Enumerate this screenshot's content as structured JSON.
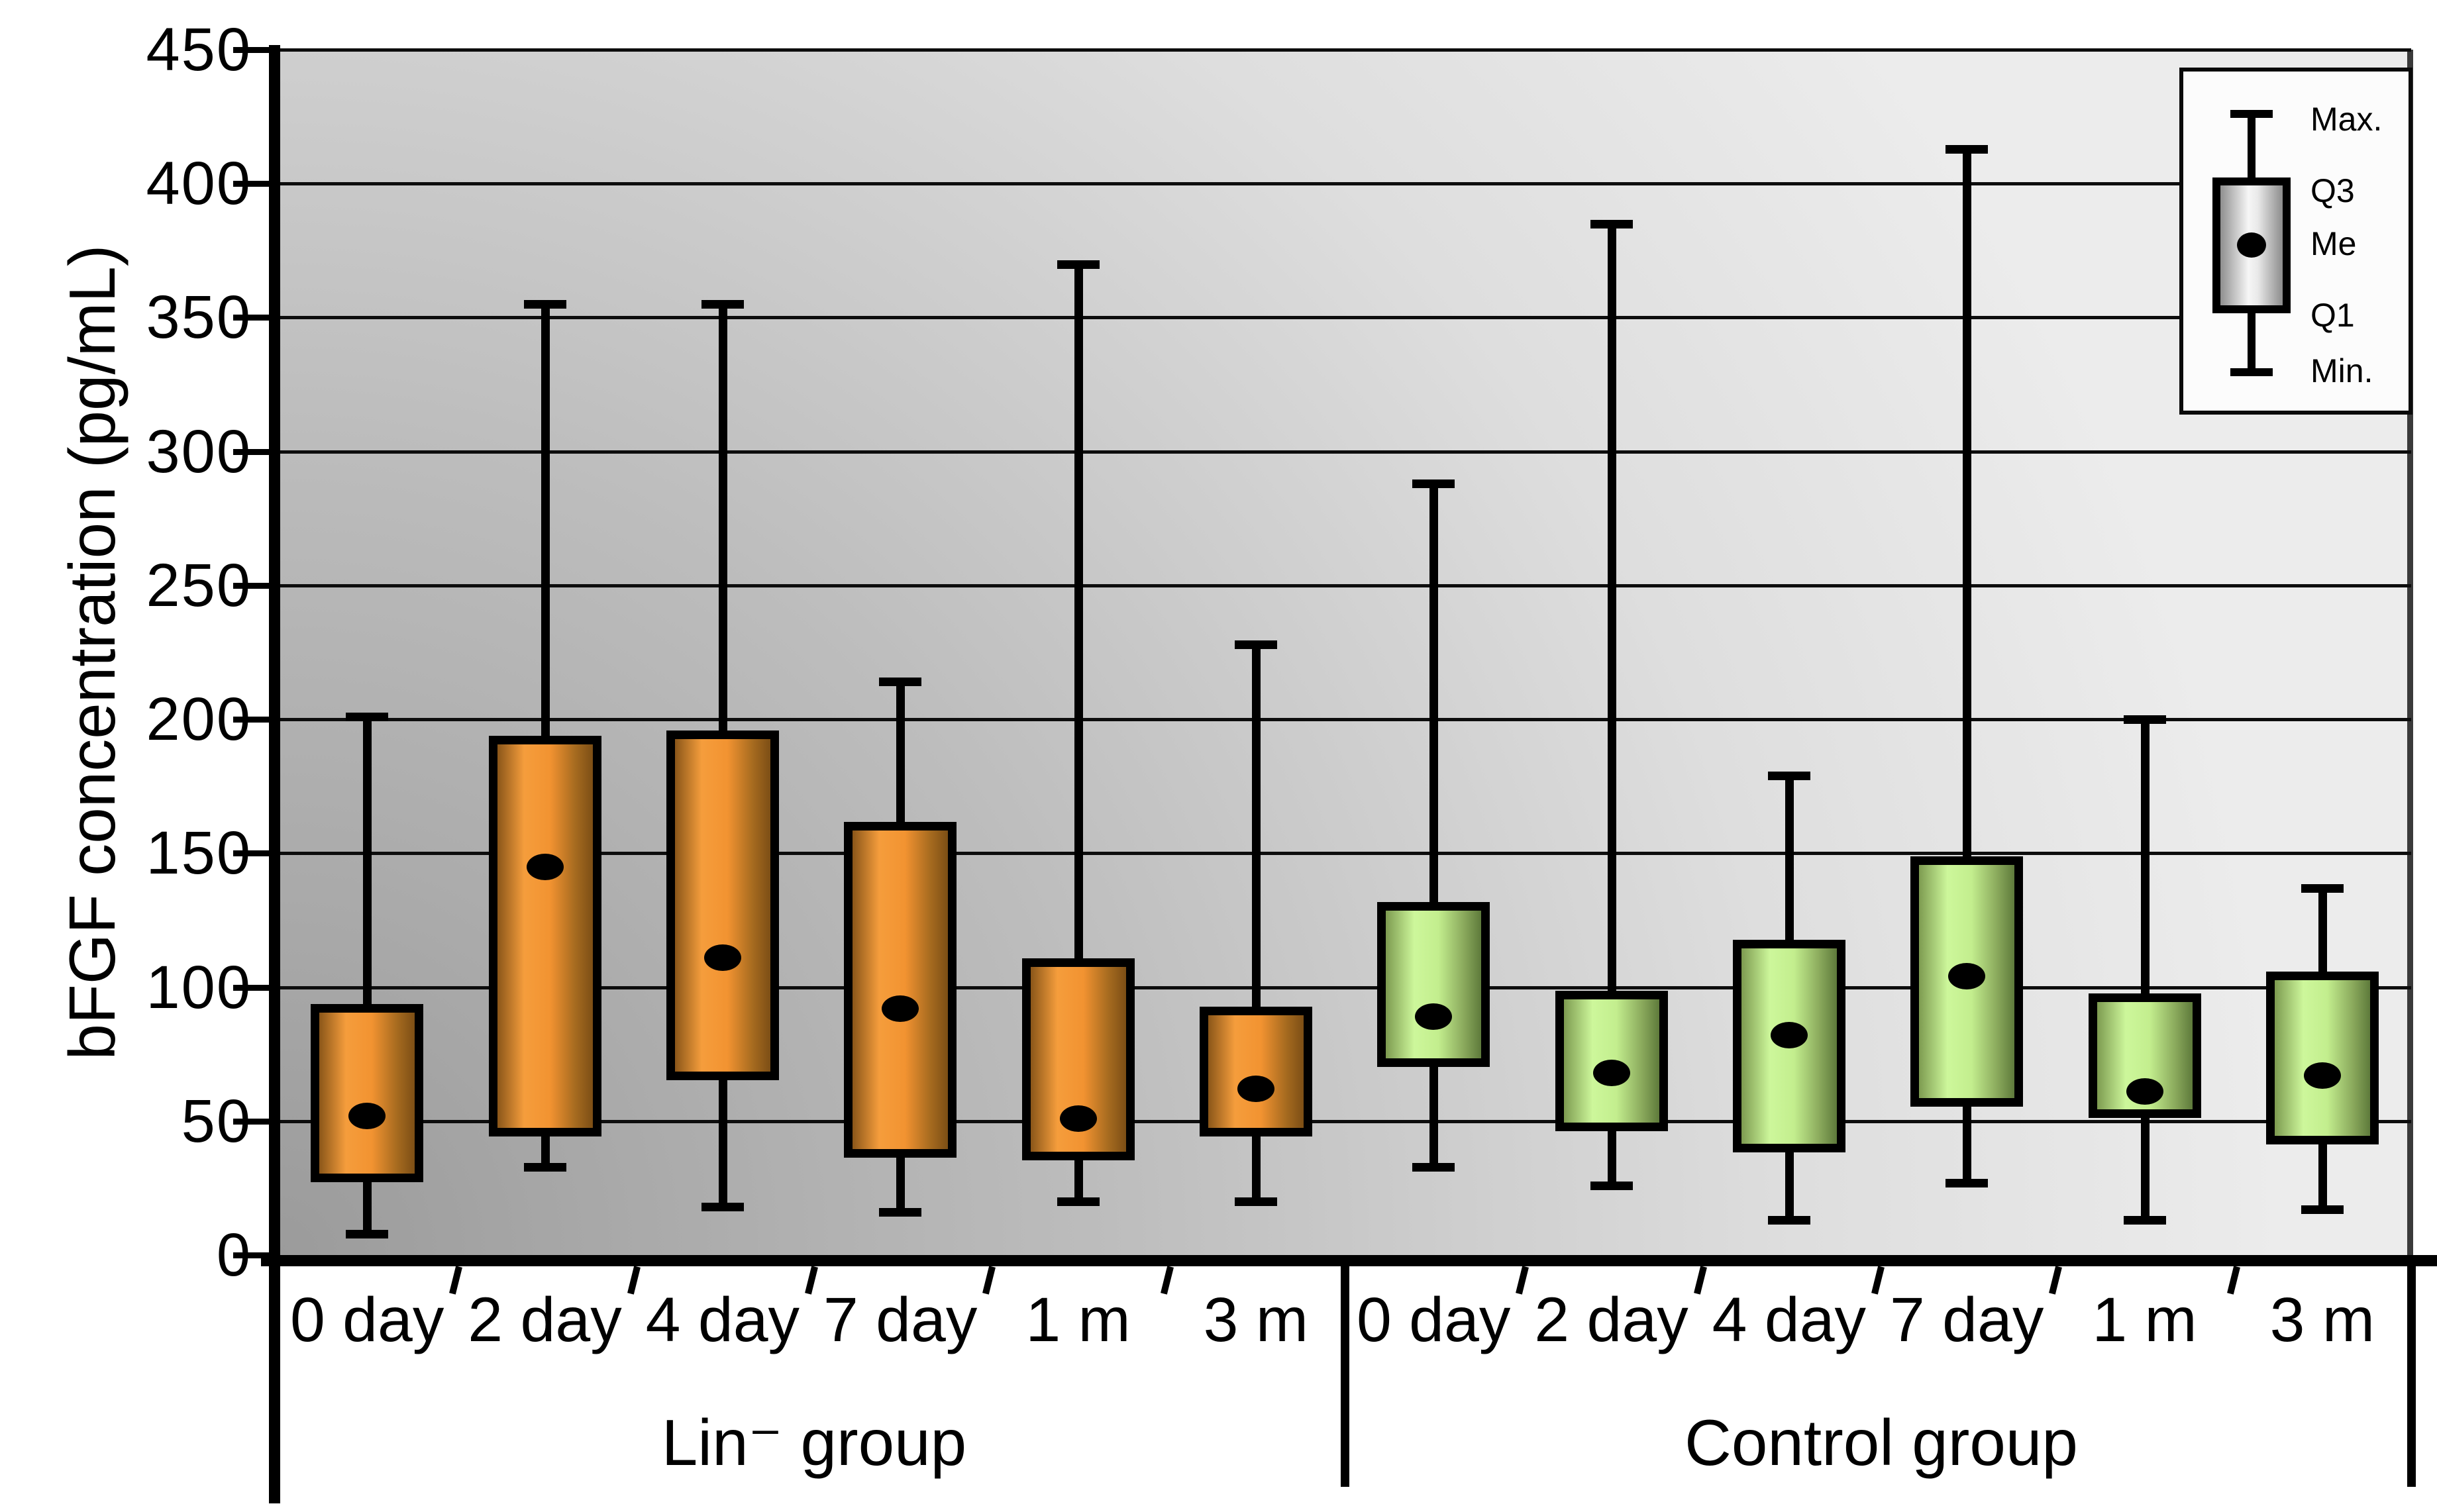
{
  "y_axis": {
    "label": "bFGF concentration (pg/mL)",
    "ticks": [
      450,
      400,
      350,
      300,
      250,
      200,
      150,
      100,
      50,
      0
    ],
    "min": 0,
    "max": 450,
    "step": 50
  },
  "legend": {
    "items": [
      "Max.",
      "Q3",
      "Me",
      "Q1",
      "Min."
    ]
  },
  "colors": {
    "lin_box": "#f29331",
    "lin_box_edge": "#7c4e15",
    "control_box": "#c3ee8e",
    "control_box_edge": "#5e7a3b",
    "background_top": "#ececec",
    "background_bottom_left": "#9b9b9b",
    "line": "#000000"
  },
  "chart_data": {
    "type": "box",
    "title": "",
    "xlabel": "",
    "ylabel": "bFGF concentration (pg/mL)",
    "ylim": [
      0,
      450
    ],
    "ytick_step": 50,
    "grid": true,
    "legend_position": "top-right",
    "categories": [
      "0 day",
      "2 day",
      "4 day",
      "7 day",
      "1 m",
      "3 m"
    ],
    "groups": [
      {
        "name": "Lin⁻ group",
        "theme": "orange",
        "boxes": [
          {
            "label": "0 day",
            "min": 8,
            "q1": 29,
            "median": 52,
            "q3": 92,
            "max": 201
          },
          {
            "label": "2 day",
            "min": 33,
            "q1": 46,
            "median": 145,
            "q3": 192,
            "max": 355
          },
          {
            "label": "4 day",
            "min": 18,
            "q1": 67,
            "median": 111,
            "q3": 194,
            "max": 355
          },
          {
            "label": "7 day",
            "min": 16,
            "q1": 38,
            "median": 92,
            "q3": 160,
            "max": 214
          },
          {
            "label": "1 m",
            "min": 20,
            "q1": 37,
            "median": 51,
            "q3": 109,
            "max": 370
          },
          {
            "label": "3 m",
            "min": 20,
            "q1": 46,
            "median": 62,
            "q3": 91,
            "max": 228
          }
        ]
      },
      {
        "name": "Control group",
        "theme": "green",
        "boxes": [
          {
            "label": "0 day",
            "min": 33,
            "q1": 72,
            "median": 89,
            "q3": 130,
            "max": 288
          },
          {
            "label": "2 day",
            "min": 26,
            "q1": 48,
            "median": 68,
            "q3": 97,
            "max": 385
          },
          {
            "label": "4 day",
            "min": 13,
            "q1": 40,
            "median": 82,
            "q3": 116,
            "max": 179
          },
          {
            "label": "7 day",
            "min": 27,
            "q1": 57,
            "median": 104,
            "q3": 147,
            "max": 413
          },
          {
            "label": "1 m",
            "min": 13,
            "q1": 53,
            "median": 61,
            "q3": 96,
            "max": 200
          },
          {
            "label": "3 m",
            "min": 17,
            "q1": 43,
            "median": 67,
            "q3": 104,
            "max": 137
          }
        ]
      }
    ]
  }
}
